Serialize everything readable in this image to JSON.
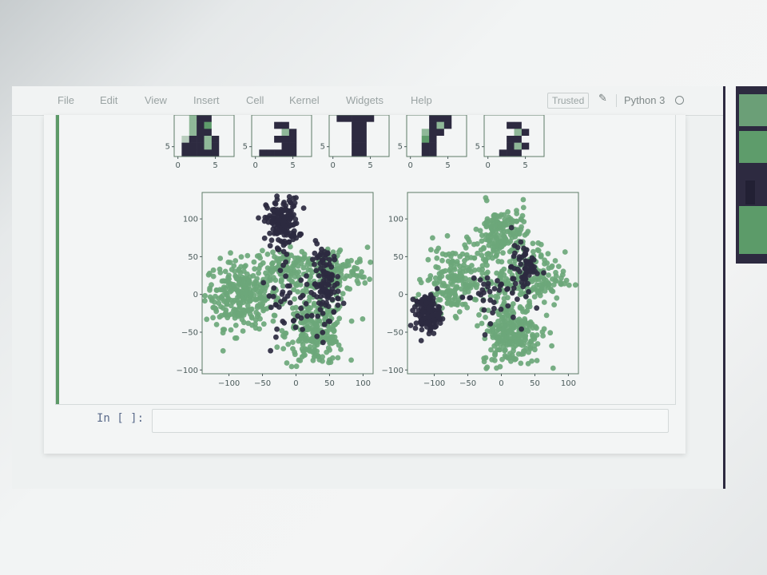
{
  "menu": {
    "items": [
      "File",
      "Edit",
      "View",
      "Insert",
      "Cell",
      "Kernel",
      "Widgets",
      "Help"
    ],
    "trusted_label": "Trusted",
    "kernel_name": "Python 3"
  },
  "icons": {
    "edit": "pencil-icon",
    "kernel_status": "circle-outline-icon"
  },
  "input_cell": {
    "prompt": "In [ ]:"
  },
  "colors": {
    "cluster_dark": "#2d2a40",
    "cluster_green": "#6da77a",
    "cell_bar": "#5d9a68"
  },
  "chart_data": [
    {
      "type": "heatmap",
      "panels": 5,
      "x_ticks": [
        "0",
        "5"
      ],
      "y_ticks": [
        "5"
      ]
    },
    {
      "type": "scatter",
      "x_ticks": [
        "−100",
        "−50",
        "0",
        "50",
        "100"
      ],
      "y_ticks": [
        "100",
        "50",
        "0",
        "−50",
        "−100"
      ],
      "xlim": [
        -140,
        115
      ],
      "ylim": [
        -105,
        135
      ],
      "series": [
        {
          "color": "#6da77a",
          "clusters": [
            {
              "cx": -80,
              "cy": 0,
              "sx": 28,
              "sy": 22,
              "n": 320
            },
            {
              "cx": 30,
              "cy": -50,
              "sx": 22,
              "sy": 22,
              "n": 240
            },
            {
              "cx": 50,
              "cy": 30,
              "sx": 28,
              "sy": 16,
              "n": 180
            },
            {
              "cx": -20,
              "cy": 35,
              "sx": 18,
              "sy": 12,
              "n": 80
            }
          ]
        },
        {
          "color": "#2d2a40",
          "clusters": [
            {
              "cx": -20,
              "cy": 95,
              "sx": 12,
              "sy": 16,
              "n": 170
            },
            {
              "cx": 45,
              "cy": 15,
              "sx": 10,
              "sy": 25,
              "n": 110
            },
            {
              "cx": -10,
              "cy": -10,
              "sx": 22,
              "sy": 22,
              "n": 40
            }
          ]
        }
      ]
    },
    {
      "type": "scatter",
      "x_ticks": [
        "−100",
        "−50",
        "0",
        "50",
        "100"
      ],
      "y_ticks": [
        "100",
        "50",
        "0",
        "−50",
        "−100"
      ],
      "xlim": [
        -140,
        115
      ],
      "ylim": [
        -105,
        135
      ],
      "series": [
        {
          "color": "#6da77a",
          "clusters": [
            {
              "cx": 0,
              "cy": 75,
              "sx": 20,
              "sy": 22,
              "n": 200
            },
            {
              "cx": -70,
              "cy": 20,
              "sx": 22,
              "sy": 22,
              "n": 190
            },
            {
              "cx": 45,
              "cy": 20,
              "sx": 25,
              "sy": 18,
              "n": 170
            },
            {
              "cx": 15,
              "cy": -50,
              "sx": 22,
              "sy": 22,
              "n": 260
            }
          ]
        },
        {
          "color": "#2d2a40",
          "clusters": [
            {
              "cx": -110,
              "cy": -25,
              "sx": 9,
              "sy": 12,
              "n": 150
            },
            {
              "cx": 35,
              "cy": 35,
              "sx": 10,
              "sy": 15,
              "n": 60
            },
            {
              "cx": -20,
              "cy": 0,
              "sx": 22,
              "sy": 18,
              "n": 40
            }
          ]
        }
      ]
    }
  ]
}
